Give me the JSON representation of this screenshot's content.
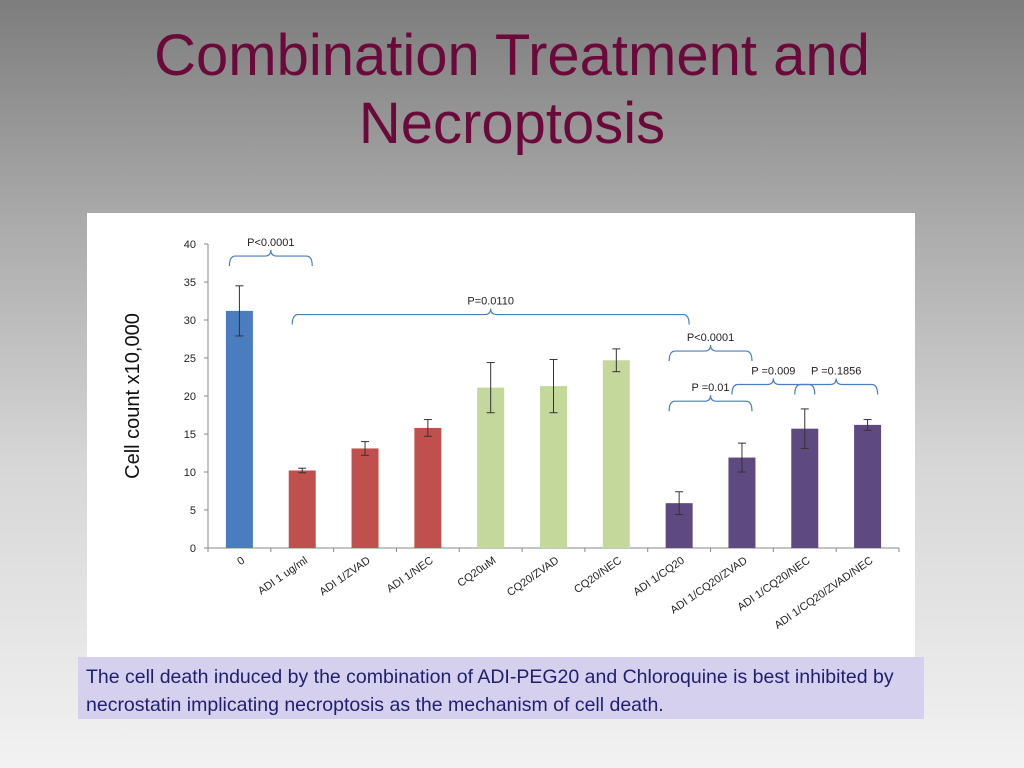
{
  "slide": {
    "title_line1": "Combination Treatment and",
    "title_line2": "Necroptosis",
    "caption": "The cell death induced by the combination of ADI-PEG20 and Chloroquine is best inhibited by necrostatin implicating necroptosis as the mechanism of cell death."
  },
  "colors": {
    "title": "#6b0a3a",
    "blue": "#4a7cc0",
    "red": "#c0504d",
    "green": "#c4d89b",
    "purple": "#5e4a80",
    "bracket": "#4a7cc0",
    "caption_bg": "#d4d0ee"
  },
  "chart_data": {
    "type": "bar",
    "ylabel": "Cell count x10,000",
    "xlabel": "",
    "ylim": [
      0,
      40
    ],
    "yticks": [
      0,
      5,
      10,
      15,
      20,
      25,
      30,
      35,
      40
    ],
    "categories": [
      "0",
      "ADI 1 ug/ml",
      "ADI 1/ZVAD",
      "ADI 1/NEC",
      "CQ20uM",
      "CQ20/ZVAD",
      "CQ20/NEC",
      "ADI 1/CQ20",
      "ADI 1/CQ20/ZVAD",
      "ADI 1/CQ20/NEC",
      "ADI 1/CQ20/ZVAD/NEC"
    ],
    "values": [
      31.2,
      10.2,
      13.1,
      15.8,
      21.1,
      21.3,
      24.7,
      5.9,
      11.9,
      15.7,
      16.2
    ],
    "errors": [
      3.3,
      0.3,
      0.9,
      1.1,
      3.3,
      3.5,
      1.5,
      1.5,
      1.9,
      2.6,
      0.7
    ],
    "bar_colors": [
      "blue",
      "red",
      "red",
      "red",
      "green",
      "green",
      "green",
      "purple",
      "purple",
      "purple",
      "purple"
    ],
    "annotations": [
      {
        "text": "P<0.0001",
        "from": 0,
        "to": 1,
        "level": 37.1
      },
      {
        "text": "P=0.0110",
        "from": 1,
        "to": 7,
        "level": 29.4
      },
      {
        "text": "P<0.0001",
        "from": 7,
        "to": 8,
        "level": 24.6
      },
      {
        "text": "P =0.01",
        "from": 7,
        "to": 8,
        "level": 18.0
      },
      {
        "text": "P =0.009",
        "from": 8,
        "to": 9,
        "level": 20.2
      },
      {
        "text": "P =0.1856",
        "from": 9,
        "to": 10,
        "level": 20.2
      }
    ],
    "grid": false,
    "legend": "none"
  }
}
